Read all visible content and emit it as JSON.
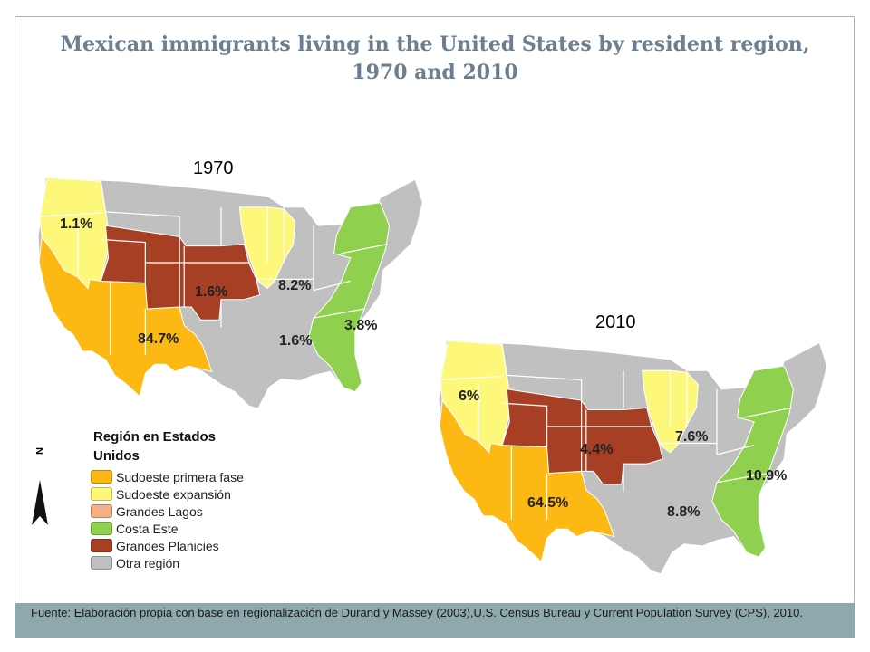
{
  "title": "Mexican immigrants living in the United States by resident region, 1970 and 2010",
  "colors": {
    "sudoeste_primera": "#fdb913",
    "sudoeste_expansion": "#fdf87a",
    "grandes_lagos": "#f4b084",
    "costa_este": "#8fd14f",
    "grandes_planicies": "#a63f24",
    "otra": "#c0c0c0",
    "source_bar": "#8ea9ac"
  },
  "maps": [
    {
      "year": "1970",
      "labels": {
        "sudoeste_expansion_nw": "1.1%",
        "grandes_planicies": "1.6%",
        "grandes_lagos": "8.2%",
        "costa_este": "3.8%",
        "otra": "1.6%",
        "sudoeste_primera": "84.7%"
      }
    },
    {
      "year": "2010",
      "labels": {
        "sudoeste_expansion_nw": "6%",
        "grandes_planicies": "4.4%",
        "grandes_lagos": "7.6%",
        "costa_este": "10.9%",
        "otra": "8.8%",
        "sudoeste_primera": "64.5%"
      }
    }
  ],
  "legend": {
    "title": "Región en Estados Unidos",
    "items": [
      {
        "label": "Sudoeste primera fase",
        "color": "#fdb913"
      },
      {
        "label": "Sudoeste expansión",
        "color": "#fdf87a"
      },
      {
        "label": "Grandes Lagos",
        "color": "#f4b084"
      },
      {
        "label": "Costa Este",
        "color": "#8fd14f"
      },
      {
        "label": "Grandes Planicies",
        "color": "#a63f24"
      },
      {
        "label": "Otra región",
        "color": "#c0c0c0"
      }
    ]
  },
  "north_arrow_label": "N",
  "source": "Fuente: Elaboración propia con base en  regionalización de Durand y Massey (2003),U.S. Census Bureau y Current Population Survey (CPS), 2010."
}
